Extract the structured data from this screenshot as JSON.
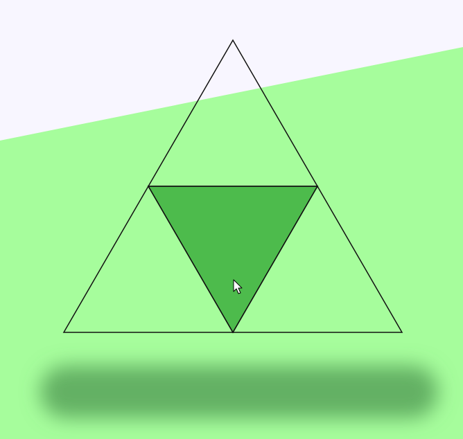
{
  "scene": {
    "colors": {
      "sky": "#f8f6ff",
      "ground": "#a6fd9c",
      "center_triangle_fill": "#4dbb4c",
      "outline": "#111111",
      "shadow": "#58a35a"
    },
    "icons": {
      "cursor": "mouse-pointer-icon"
    }
  }
}
